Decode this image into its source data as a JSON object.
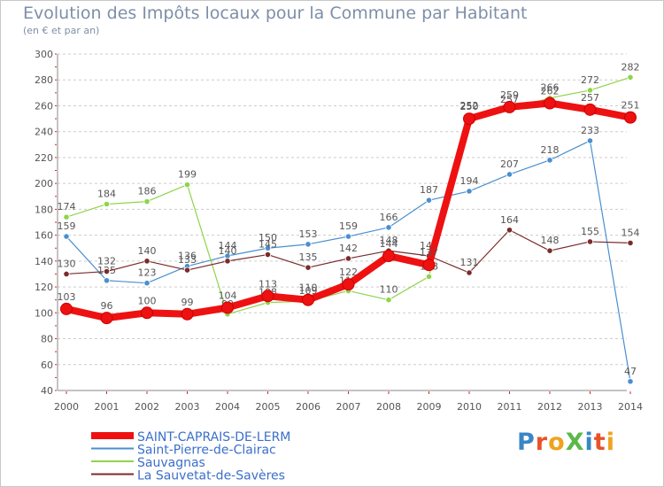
{
  "title": "Evolution des Impôts locaux pour la Commune par Habitant",
  "subtitle": "(en € et par an)",
  "logo_text": "ProXiti",
  "chart_data": {
    "type": "line",
    "title": "Evolution des Impôts locaux pour la Commune par Habitant",
    "subtitle": "(en € et par an)",
    "xlabel": "",
    "ylabel": "",
    "ylim": [
      40,
      300
    ],
    "yticks": [
      40,
      60,
      80,
      100,
      120,
      140,
      160,
      180,
      200,
      220,
      240,
      260,
      280,
      300
    ],
    "categories": [
      "2000",
      "2001",
      "2002",
      "2003",
      "2004",
      "2005",
      "2006",
      "2007",
      "2008",
      "2009",
      "2010",
      "2011",
      "2012",
      "2013",
      "2014"
    ],
    "grid": "dashed horizontal",
    "legend_position": "bottom-left",
    "series": [
      {
        "name": "Saint-Pierre-de-Clairac",
        "color": "#4a8fcf",
        "values": [
          159,
          125,
          123,
          136,
          144,
          150,
          153,
          159,
          166,
          187,
          194,
          207,
          218,
          233,
          47
        ]
      },
      {
        "name": "Sauvagnas",
        "color": "#8fd44a",
        "values": [
          174,
          184,
          186,
          199,
          99,
          108,
          109,
          117,
          110,
          128,
          252,
          257,
          266,
          272,
          282
        ]
      },
      {
        "name": "La Sauvetat-de-Savères",
        "color": "#7a2b2b",
        "values": [
          130,
          132,
          140,
          133,
          140,
          145,
          135,
          142,
          148,
          144,
          131,
          164,
          148,
          155,
          154
        ]
      },
      {
        "name": "SAINT-CAPRAIS-DE-LERM",
        "color": "#ee1111",
        "values": [
          103,
          96,
          100,
          99,
          104,
          113,
          110,
          122,
          144,
          137,
          250,
          259,
          262,
          257,
          251
        ]
      }
    ],
    "legend_order": [
      "SAINT-CAPRAIS-DE-LERM",
      "Saint-Pierre-de-Clairac",
      "Sauvagnas",
      "La Sauvetat-de-Savères"
    ]
  }
}
